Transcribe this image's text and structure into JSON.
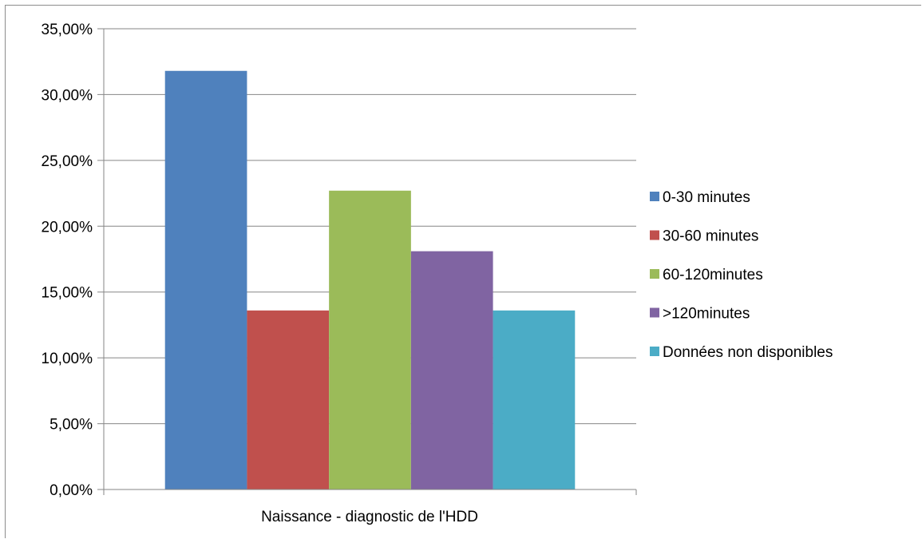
{
  "chart_data": {
    "type": "bar",
    "categories": [
      "Naissance - diagnostic de l'HDD"
    ],
    "series": [
      {
        "name": "0-30 minutes",
        "values": [
          31.8
        ],
        "color": "#4F81BD"
      },
      {
        "name": "30-60 minutes",
        "values": [
          13.6
        ],
        "color": "#C0504D"
      },
      {
        "name": "60-120minutes",
        "values": [
          22.7
        ],
        "color": "#9BBB59"
      },
      {
        "name": ">120minutes",
        "values": [
          18.1
        ],
        "color": "#8064A2"
      },
      {
        "name": "Données non disponibles",
        "values": [
          13.6
        ],
        "color": "#4BACC6"
      }
    ],
    "title": "",
    "xlabel": "",
    "ylabel": "",
    "ylim": [
      0,
      35
    ],
    "yticks": [
      "0,00%",
      "5,00%",
      "10,00%",
      "15,00%",
      "20,00%",
      "25,00%",
      "30,00%",
      "35,00%"
    ],
    "ytick_values": [
      0,
      5,
      10,
      15,
      20,
      25,
      30,
      35
    ],
    "grid": true,
    "legend_position": "right"
  }
}
